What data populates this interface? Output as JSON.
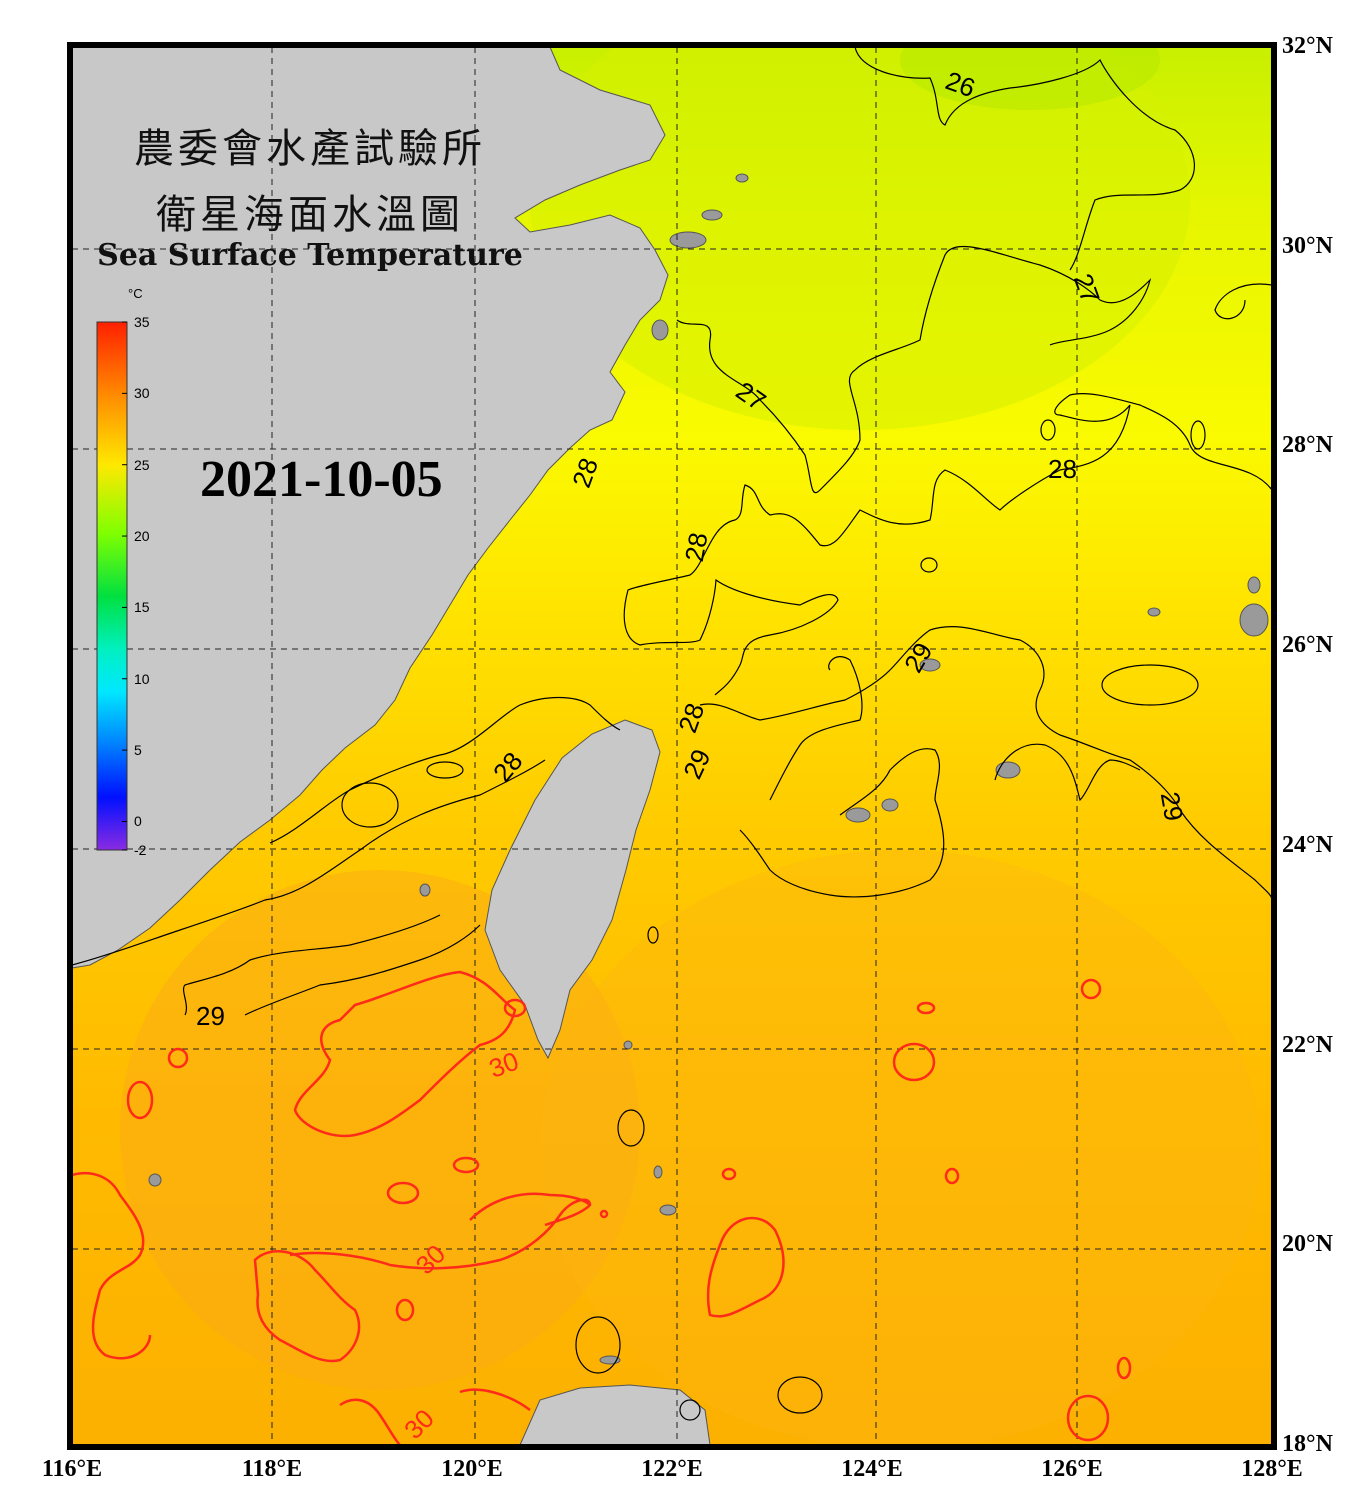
{
  "title": {
    "zh_line1": "農委會水產試驗所",
    "zh_line2": "衛星海面水溫圖",
    "en": "Sea Surface Temperature"
  },
  "date": "2021-10-05",
  "legend": {
    "unit": "°C",
    "min": -2,
    "max": 35,
    "ticks": [
      "35",
      "30",
      "25",
      "20",
      "15",
      "10",
      "5",
      "0",
      "-2"
    ],
    "tick_values": [
      35,
      30,
      25,
      20,
      15,
      10,
      5,
      0,
      -2
    ]
  },
  "axes": {
    "lat_labels": [
      "32°N",
      "30°N",
      "28°N",
      "26°N",
      "24°N",
      "22°N",
      "20°N",
      "18°N"
    ],
    "lon_labels": [
      "116°E",
      "118°E",
      "120°E",
      "122°E",
      "124°E",
      "126°E",
      "128°E"
    ],
    "lat_range": [
      18,
      32
    ],
    "lon_range": [
      116,
      128
    ],
    "grid": true
  },
  "isotherm_labels": [
    "26",
    "27",
    "27",
    "28",
    "28",
    "28",
    "28",
    "28",
    "29",
    "29",
    "29",
    "29",
    "30",
    "30",
    "30"
  ],
  "colors": {
    "land": "#c8c8c8",
    "frame": "#000000",
    "contour": "#000000",
    "contour_30": "#ff2a1a",
    "sst_26": "#d8f200",
    "sst_27": "#f4f400",
    "sst_28": "#ffdc00",
    "sst_29": "#ffc000",
    "sst_30": "#fcaa10"
  }
}
